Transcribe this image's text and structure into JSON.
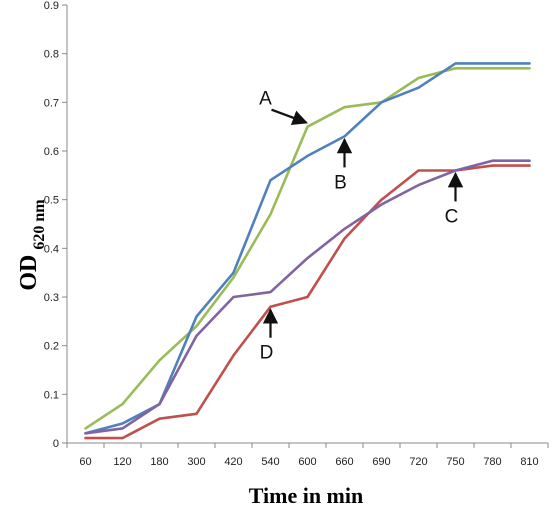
{
  "chart_data": {
    "type": "line",
    "title": "",
    "xlabel": "Time in min",
    "ylabel": "OD",
    "ylabel_subscript": "620 nm",
    "ylim": [
      0,
      0.9
    ],
    "yticks": [
      0,
      0.1,
      0.2,
      0.3,
      0.4,
      0.5,
      0.6,
      0.7,
      0.8,
      0.9
    ],
    "ytick_labels": [
      "0",
      "0.1",
      "0.2",
      "0.3",
      "0.4",
      "0.5",
      "0.6",
      "0.7",
      "0.8",
      "0.9"
    ],
    "grid": false,
    "legend": "none",
    "categories": [
      "60",
      "120",
      "180",
      "300",
      "420",
      "540",
      "600",
      "660",
      "690",
      "720",
      "750",
      "780",
      "810"
    ],
    "series": [
      {
        "color": "#9bbb59",
        "values": [
          0.03,
          0.08,
          0.17,
          0.24,
          0.34,
          0.47,
          0.65,
          0.69,
          0.7,
          0.75,
          0.77,
          0.77,
          0.77
        ]
      },
      {
        "color": "#4f81bd",
        "values": [
          0.02,
          0.04,
          0.08,
          0.26,
          0.35,
          0.54,
          0.59,
          0.63,
          0.7,
          0.73,
          0.78,
          0.78,
          0.78
        ]
      },
      {
        "color": "#c0504d",
        "values": [
          0.01,
          0.01,
          0.05,
          0.06,
          0.18,
          0.28,
          0.3,
          0.42,
          0.5,
          0.56,
          0.56,
          0.57,
          0.57
        ]
      },
      {
        "color": "#8064a2",
        "values": [
          0.02,
          0.03,
          0.08,
          0.22,
          0.3,
          0.31,
          0.38,
          0.44,
          0.49,
          0.53,
          0.56,
          0.58,
          0.58
        ]
      }
    ],
    "annotations": [
      {
        "label": "A",
        "series": 0,
        "category": "600",
        "arrow": "diagonal-right"
      },
      {
        "label": "B",
        "series": 1,
        "category": "660",
        "arrow": "up"
      },
      {
        "label": "C",
        "series": 3,
        "category": "750",
        "arrow": "up"
      },
      {
        "label": "D",
        "series": 2,
        "category": "540",
        "arrow": "up"
      }
    ]
  }
}
